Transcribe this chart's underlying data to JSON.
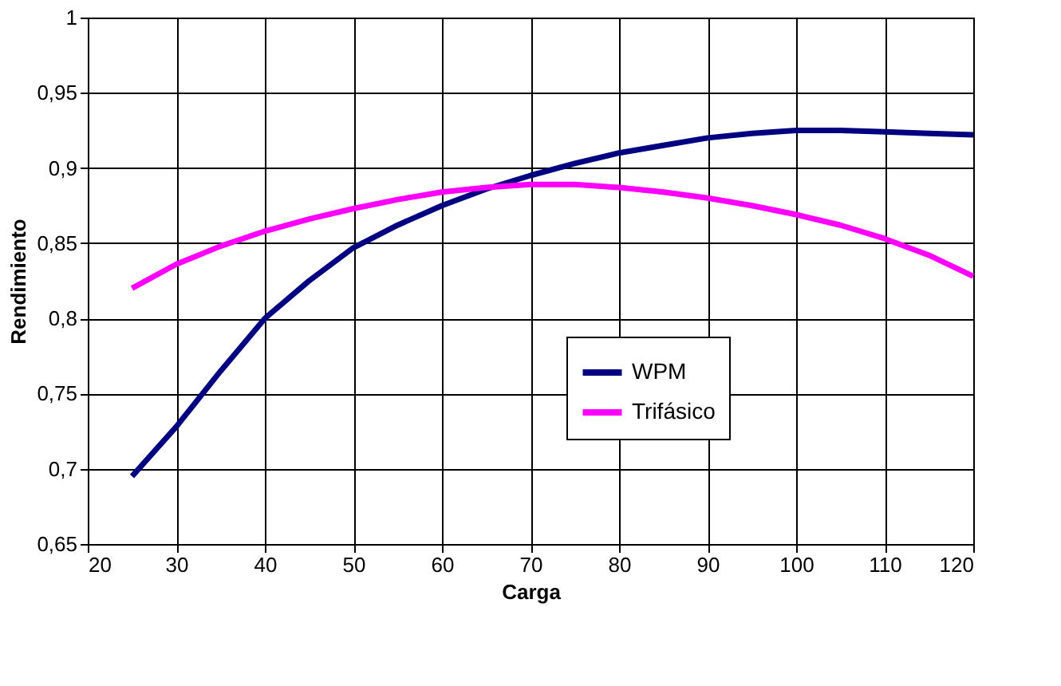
{
  "chart_data": {
    "type": "line",
    "xlabel": "Carga",
    "ylabel": "Rendimiento",
    "xlim": [
      20,
      120
    ],
    "xticks": [
      20,
      30,
      40,
      50,
      60,
      70,
      80,
      90,
      100,
      110,
      120
    ],
    "ylim": [
      0.65,
      1
    ],
    "yticks": [
      {
        "value": 0.65,
        "label": "0,65"
      },
      {
        "value": 0.7,
        "label": "0,7"
      },
      {
        "value": 0.75,
        "label": "0,75"
      },
      {
        "value": 0.8,
        "label": "0,8"
      },
      {
        "value": 0.85,
        "label": "0,85"
      },
      {
        "value": 0.9,
        "label": "0,9"
      },
      {
        "value": 0.95,
        "label": "0,95"
      },
      {
        "value": 1,
        "label": "1"
      }
    ],
    "x": [
      25,
      30,
      35,
      40,
      45,
      50,
      55,
      60,
      65,
      70,
      75,
      80,
      85,
      90,
      95,
      100,
      105,
      110,
      115,
      120
    ],
    "series": [
      {
        "name": "WPM",
        "color": "#000080",
        "values": [
          0.695,
          0.728,
          0.765,
          0.8,
          0.825,
          0.847,
          0.862,
          0.875,
          0.886,
          0.895,
          0.903,
          0.91,
          0.915,
          0.92,
          0.923,
          0.925,
          0.925,
          0.924,
          0.923,
          0.922
        ]
      },
      {
        "name": "Trifásico",
        "color": "#ff00ff",
        "values": [
          0.82,
          0.836,
          0.848,
          0.858,
          0.866,
          0.873,
          0.879,
          0.884,
          0.887,
          0.889,
          0.889,
          0.887,
          0.884,
          0.88,
          0.875,
          0.869,
          0.862,
          0.853,
          0.842,
          0.828
        ]
      }
    ],
    "grid": true,
    "legend": "bottom right",
    "marker": "none",
    "line_style": "solid"
  }
}
